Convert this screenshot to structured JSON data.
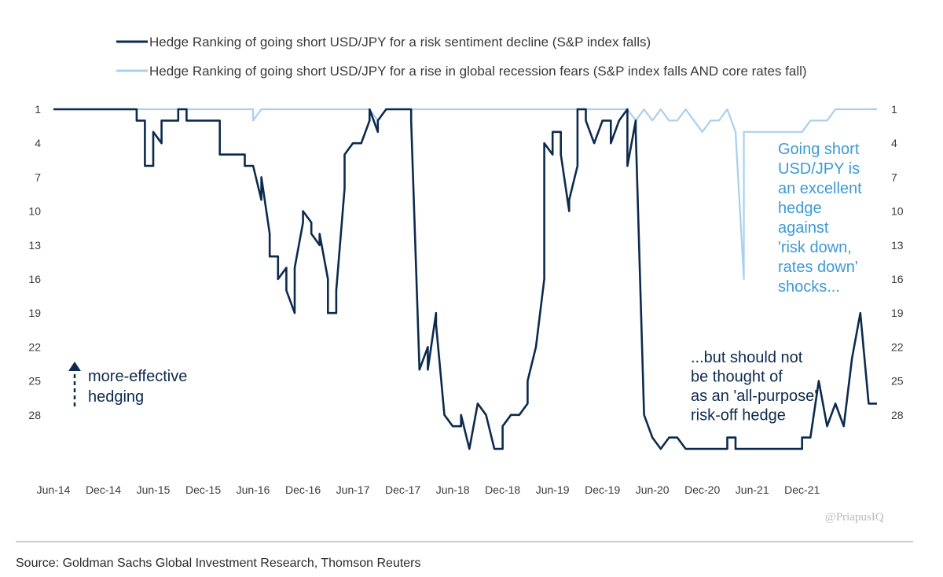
{
  "chart_data": {
    "type": "line",
    "title": "",
    "xlabel": "",
    "ylabel": "",
    "y_axis_inverted": true,
    "ylim": [
      1,
      32
    ],
    "y_ticks": [
      "1",
      "4",
      "7",
      "10",
      "13",
      "16",
      "19",
      "22",
      "25",
      "28"
    ],
    "x_tick_labels": [
      "Jun-14",
      "Dec-14",
      "Jun-15",
      "Dec-15",
      "Jun-16",
      "Dec-16",
      "Jun-17",
      "Dec-17",
      "Jun-18",
      "Dec-18",
      "Jun-19",
      "Dec-19",
      "Jun-20",
      "Dec-20",
      "Jun-21",
      "Dec-21"
    ],
    "legend_position": "top",
    "grid": false,
    "series": [
      {
        "name": "Hedge Ranking of going short USD/JPY for a risk sentiment decline (S&P index falls)",
        "color": "#0c2a4e",
        "points": [
          [
            "2014-06",
            1
          ],
          [
            "2015-04",
            1
          ],
          [
            "2015-04",
            2
          ],
          [
            "2015-05",
            2
          ],
          [
            "2015-05",
            6
          ],
          [
            "2015-06",
            6
          ],
          [
            "2015-06",
            3
          ],
          [
            "2015-07",
            4
          ],
          [
            "2015-07",
            2
          ],
          [
            "2015-09",
            2
          ],
          [
            "2015-09",
            1
          ],
          [
            "2015-10",
            1
          ],
          [
            "2015-10",
            2
          ],
          [
            "2016-02",
            2
          ],
          [
            "2016-02",
            5
          ],
          [
            "2016-05",
            5
          ],
          [
            "2016-05",
            6
          ],
          [
            "2016-06",
            6
          ],
          [
            "2016-07",
            9
          ],
          [
            "2016-07",
            7
          ],
          [
            "2016-08",
            12
          ],
          [
            "2016-08",
            14
          ],
          [
            "2016-09",
            14
          ],
          [
            "2016-09",
            16
          ],
          [
            "2016-10",
            15
          ],
          [
            "2016-10",
            17
          ],
          [
            "2016-11",
            19
          ],
          [
            "2016-11",
            15
          ],
          [
            "2016-12",
            11
          ],
          [
            "2016-12",
            10
          ],
          [
            "2017-01",
            11
          ],
          [
            "2017-01",
            12
          ],
          [
            "2017-02",
            13
          ],
          [
            "2017-02",
            12
          ],
          [
            "2017-03",
            16
          ],
          [
            "2017-03",
            19
          ],
          [
            "2017-04",
            19
          ],
          [
            "2017-04",
            17
          ],
          [
            "2017-05",
            8
          ],
          [
            "2017-05",
            5
          ],
          [
            "2017-06",
            4
          ],
          [
            "2017-07",
            4
          ],
          [
            "2017-08",
            2
          ],
          [
            "2017-08",
            1
          ],
          [
            "2017-09",
            3
          ],
          [
            "2017-09",
            2
          ],
          [
            "2017-10",
            1
          ],
          [
            "2018-01",
            1
          ],
          [
            "2018-01",
            2
          ],
          [
            "2018-02",
            24
          ],
          [
            "2018-03",
            22
          ],
          [
            "2018-03",
            24
          ],
          [
            "2018-04",
            19
          ],
          [
            "2018-04",
            20
          ],
          [
            "2018-05",
            28
          ],
          [
            "2018-06",
            29
          ],
          [
            "2018-07",
            29
          ],
          [
            "2018-07",
            28
          ],
          [
            "2018-08",
            31
          ],
          [
            "2018-09",
            27
          ],
          [
            "2018-10",
            28
          ],
          [
            "2018-11",
            31
          ],
          [
            "2018-12",
            31
          ],
          [
            "2018-12",
            29
          ],
          [
            "2019-01",
            28
          ],
          [
            "2019-02",
            28
          ],
          [
            "2019-03",
            27
          ],
          [
            "2019-03",
            25
          ],
          [
            "2019-04",
            22
          ],
          [
            "2019-05",
            16
          ],
          [
            "2019-05",
            4
          ],
          [
            "2019-06",
            5
          ],
          [
            "2019-06",
            3
          ],
          [
            "2019-07",
            3
          ],
          [
            "2019-07",
            5
          ],
          [
            "2019-08",
            10
          ],
          [
            "2019-08",
            9
          ],
          [
            "2019-09",
            6
          ],
          [
            "2019-09",
            1
          ],
          [
            "2019-10",
            1
          ],
          [
            "2019-10",
            2
          ],
          [
            "2019-11",
            4
          ],
          [
            "2019-12",
            2
          ],
          [
            "2020-01",
            2
          ],
          [
            "2020-01",
            4
          ],
          [
            "2020-02",
            2
          ],
          [
            "2020-02",
            2
          ],
          [
            "2020-03",
            1
          ],
          [
            "2020-03",
            6
          ],
          [
            "2020-04",
            2
          ],
          [
            "2020-04",
            3
          ],
          [
            "2020-05",
            28
          ],
          [
            "2020-06",
            30
          ],
          [
            "2020-07",
            31
          ],
          [
            "2020-08",
            30
          ],
          [
            "2020-09",
            30
          ],
          [
            "2020-10",
            31
          ],
          [
            "2021-03",
            31
          ],
          [
            "2021-03",
            30
          ],
          [
            "2021-04",
            30
          ],
          [
            "2021-04",
            31
          ],
          [
            "2021-12",
            31
          ],
          [
            "2021-12",
            30
          ],
          [
            "2022-01",
            30
          ],
          [
            "2022-02",
            25
          ],
          [
            "2022-03",
            29
          ],
          [
            "2022-04",
            27
          ],
          [
            "2022-05",
            29
          ],
          [
            "2022-06",
            23
          ],
          [
            "2022-07",
            19
          ],
          [
            "2022-08",
            27
          ],
          [
            "2022-09",
            27
          ]
        ]
      },
      {
        "name": "Hedge Ranking of going short USD/JPY for a rise in global recession fears (S&P index falls AND core rates fall)",
        "color": "#a9cfee",
        "points": [
          [
            "2014-06",
            1
          ],
          [
            "2016-06",
            1
          ],
          [
            "2016-06",
            2
          ],
          [
            "2016-07",
            1
          ],
          [
            "2017-08",
            1
          ],
          [
            "2017-09",
            2
          ],
          [
            "2017-10",
            1
          ],
          [
            "2020-03",
            1
          ],
          [
            "2020-04",
            2
          ],
          [
            "2020-05",
            1
          ],
          [
            "2020-06",
            2
          ],
          [
            "2020-07",
            1
          ],
          [
            "2020-08",
            2
          ],
          [
            "2020-09",
            2
          ],
          [
            "2020-10",
            1
          ],
          [
            "2020-11",
            2
          ],
          [
            "2020-12",
            3
          ],
          [
            "2021-01",
            2
          ],
          [
            "2021-02",
            2
          ],
          [
            "2021-03",
            1
          ],
          [
            "2021-04",
            3
          ],
          [
            "2021-05",
            16
          ],
          [
            "2021-05",
            3
          ],
          [
            "2021-06",
            3
          ],
          [
            "2021-07",
            3
          ],
          [
            "2021-08",
            3
          ],
          [
            "2021-09",
            3
          ],
          [
            "2021-10",
            3
          ],
          [
            "2021-11",
            3
          ],
          [
            "2021-12",
            3
          ],
          [
            "2022-01",
            2
          ],
          [
            "2022-02",
            2
          ],
          [
            "2022-03",
            2
          ],
          [
            "2022-04",
            1
          ],
          [
            "2022-09",
            1
          ]
        ]
      }
    ]
  },
  "legend": [
    {
      "label": "Hedge Ranking of going short USD/JPY for a risk sentiment decline (S&P index falls)",
      "color": "#0c2a4e"
    },
    {
      "label": "Hedge Ranking of going short USD/JPY for a rise in global recession fears (S&P index falls AND core rates fall)",
      "color": "#a9cfee"
    }
  ],
  "annotations": {
    "light": [
      "Going short",
      "USD/JPY is",
      "an excellent",
      "hedge",
      "against",
      "'risk down,",
      "rates down'",
      "shocks..."
    ],
    "dark": [
      "...but should not",
      "be thought of",
      "as an 'all-purpose'",
      "risk-off hedge"
    ],
    "arrow": [
      "more-effective",
      "hedging"
    ]
  },
  "colors": {
    "dark_series": "#0c2a4e",
    "light_series": "#a9cfee",
    "light_annotation": "#3d9ad6"
  },
  "watermark": "@PriapusIQ",
  "source": "Source: Goldman Sachs Global Investment Research, Thomson Reuters"
}
